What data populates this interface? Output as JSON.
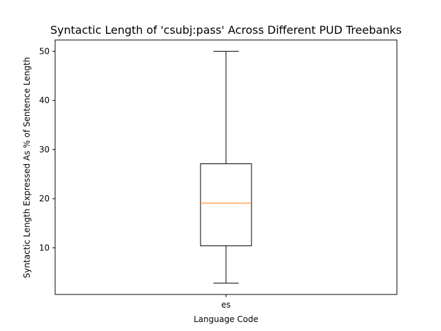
{
  "chart_data": {
    "type": "box",
    "title": "Syntactic Length of 'csubj:pass' Across Different PUD Treebanks",
    "xlabel": "Language Code",
    "ylabel": "Syntactic Length Expressed As % of Sentence Length",
    "categories": [
      "es"
    ],
    "boxes": [
      {
        "category": "es",
        "whisker_low": 2.8,
        "q1": 10.4,
        "median": 19.1,
        "q3": 27.1,
        "whisker_high": 50.0
      }
    ],
    "ylim": [
      0.5,
      52.3
    ],
    "yticks": [
      10,
      20,
      30,
      40,
      50
    ],
    "grid": false,
    "colors": {
      "box": "#000000",
      "median": "#ff7f0e",
      "whisker": "#000000"
    }
  }
}
